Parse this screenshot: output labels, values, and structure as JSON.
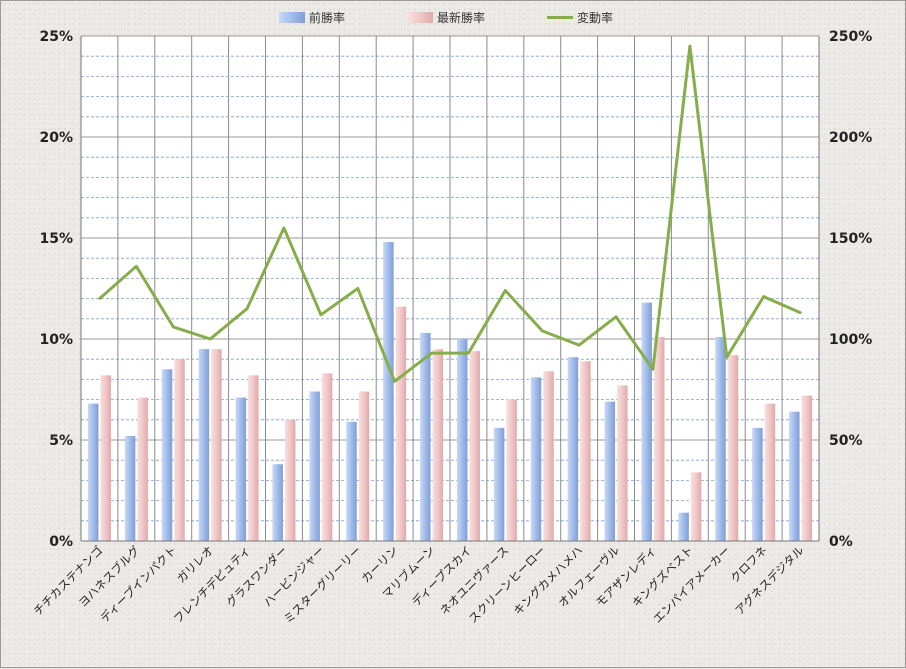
{
  "chart_data": {
    "type": "bar",
    "categories": [
      "チチカステナンゴ",
      "ヨハネスブルグ",
      "ディープインパクト",
      "ガリレオ",
      "フレンチデピュティ",
      "グラスワンダー",
      "ハービンジャー",
      "ミスターグリーリー",
      "カーリン",
      "マリブムーン",
      "ディープスカイ",
      "ネオユニヴァース",
      "スクリーンヒーロー",
      "キングカメハメハ",
      "オルフェーヴル",
      "モアザンレディ",
      "キングズベスト",
      "エンパイアメーカー",
      "クロフネ",
      "アグネスデジタル"
    ],
    "series": [
      {
        "name": "前勝率",
        "axis": "left",
        "color": "#9db8e8",
        "values": [
          6.8,
          5.2,
          8.5,
          9.5,
          7.1,
          3.8,
          7.4,
          5.9,
          14.8,
          10.3,
          10.0,
          5.6,
          8.1,
          9.1,
          6.9,
          11.8,
          1.4,
          10.1,
          5.6,
          6.4
        ]
      },
      {
        "name": "最新勝率",
        "axis": "left",
        "color": "#efc4c4",
        "values": [
          8.2,
          7.1,
          9.0,
          9.5,
          8.2,
          6.0,
          8.3,
          7.4,
          11.6,
          9.5,
          9.4,
          7.0,
          8.4,
          8.9,
          7.7,
          10.1,
          3.4,
          9.2,
          6.8,
          7.2
        ]
      },
      {
        "name": "変動率",
        "axis": "right",
        "type": "line",
        "color": "#86ad4a",
        "values": [
          120,
          136,
          106,
          100,
          115,
          155,
          112,
          125,
          79,
          93,
          93,
          124,
          104,
          97,
          111,
          85,
          245,
          91,
          121,
          113
        ]
      }
    ],
    "y_left": {
      "min": 0,
      "max": 25,
      "ticks": [
        "0%",
        "5%",
        "10%",
        "15%",
        "20%",
        "25%"
      ]
    },
    "y_right": {
      "min": 0,
      "max": 250,
      "ticks": [
        "0%",
        "50%",
        "100%",
        "150%",
        "200%",
        "250%"
      ]
    },
    "legend": {
      "position": "top",
      "items": [
        "前勝率",
        "最新勝率",
        "変動率"
      ]
    },
    "grid": true
  }
}
